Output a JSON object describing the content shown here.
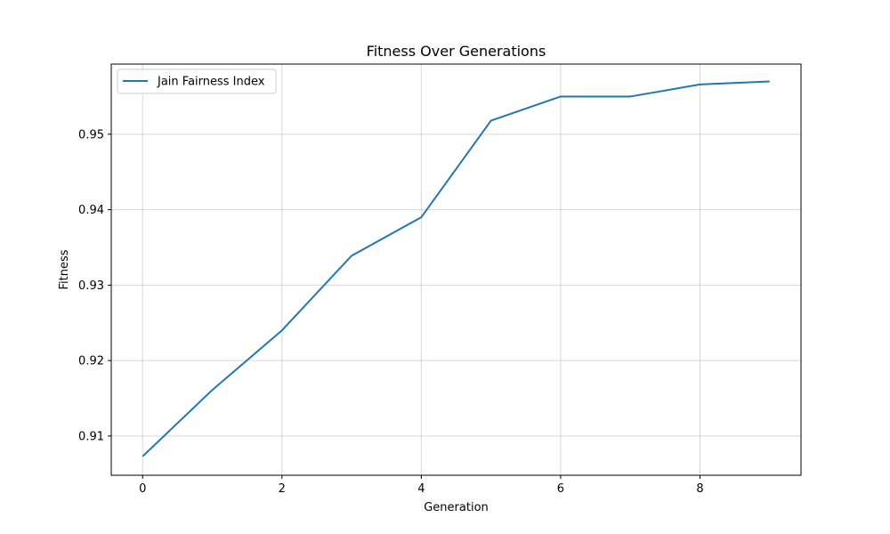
{
  "chart_data": {
    "type": "line",
    "title": "Fitness Over Generations",
    "xlabel": "Generation",
    "ylabel": "Fitness",
    "x": [
      0,
      1,
      2,
      3,
      4,
      5,
      6,
      7,
      8,
      9
    ],
    "series": [
      {
        "name": "Jain Fairness Index",
        "color": "#1f77b4",
        "values": [
          0.9073,
          0.9161,
          0.924,
          0.9339,
          0.939,
          0.9518,
          0.955,
          0.955,
          0.9566,
          0.957
        ]
      }
    ],
    "xlim": [
      -0.45,
      9.45
    ],
    "ylim": [
      0.9048,
      0.9593
    ],
    "xticks": [
      0,
      2,
      4,
      6,
      8
    ],
    "xtick_labels": [
      "0",
      "2",
      "4",
      "6",
      "8"
    ],
    "yticks": [
      0.91,
      0.92,
      0.93,
      0.94,
      0.95
    ],
    "ytick_labels": [
      "0.91",
      "0.92",
      "0.93",
      "0.94",
      "0.95"
    ],
    "grid": true,
    "legend_position": "top-left"
  }
}
